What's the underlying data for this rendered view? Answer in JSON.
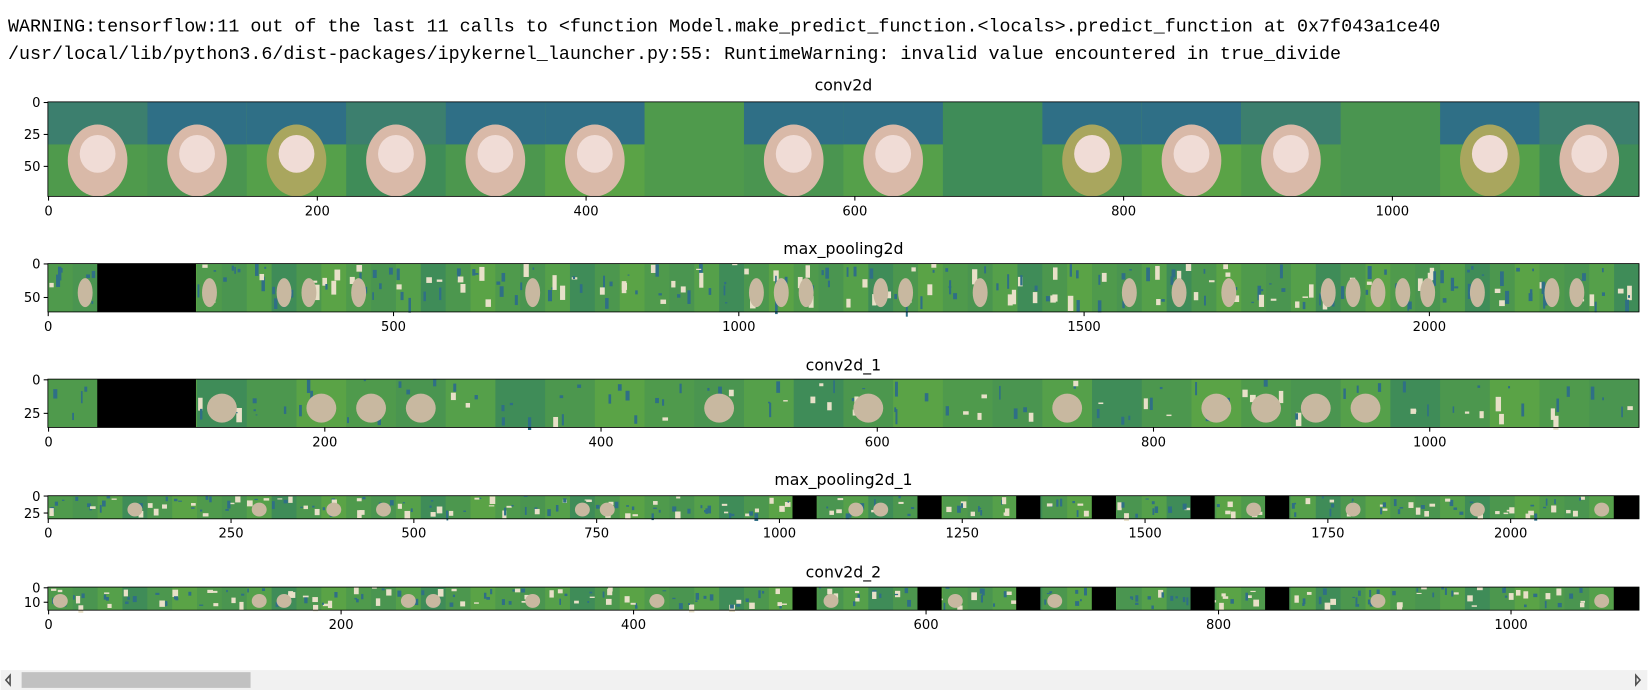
{
  "output": {
    "lines": [
      "WARNING:tensorflow:11 out of the last 11 calls to <function Model.make_predict_function.<locals>.predict_function at 0x7f043a1ce40",
      "/usr/local/lib/python3.6/dist-packages/ipykernel_launcher.py:55: RuntimeWarning: invalid value encountered in true_divide"
    ]
  },
  "panels": [
    {
      "title": "conv2d",
      "xlim": [
        -0.5,
        1183.5
      ],
      "ylim": [
        73.5,
        -0.5
      ],
      "xticks": [
        0,
        200,
        400,
        600,
        800,
        1000
      ],
      "yticks": [
        0,
        25,
        50
      ]
    },
    {
      "title": "max_pooling2d",
      "xlim": [
        -0.5,
        2303.5
      ],
      "ylim": [
        71.5,
        -0.5
      ],
      "xticks": [
        0,
        500,
        1000,
        1500,
        2000
      ],
      "yticks": [
        0,
        50
      ]
    },
    {
      "title": "conv2d_1",
      "xlim": [
        -0.5,
        1151.5
      ],
      "ylim": [
        35.5,
        -0.5
      ],
      "xticks": [
        0,
        200,
        400,
        600,
        800,
        1000
      ],
      "yticks": [
        0,
        25
      ]
    },
    {
      "title": "max_pooling2d_1",
      "xlim": [
        -0.5,
        2175.5
      ],
      "ylim": [
        33.5,
        -0.5
      ],
      "xticks": [
        0,
        250,
        500,
        750,
        1000,
        1250,
        1500,
        1750,
        2000
      ],
      "yticks": [
        0,
        25
      ]
    },
    {
      "title": "conv2d_2",
      "xlim": [
        -0.5,
        1087.5
      ],
      "ylim": [
        15.5,
        -0.5
      ],
      "xticks": [
        0,
        200,
        400,
        600,
        800,
        1000
      ],
      "yticks": [
        0,
        10
      ]
    }
  ]
}
